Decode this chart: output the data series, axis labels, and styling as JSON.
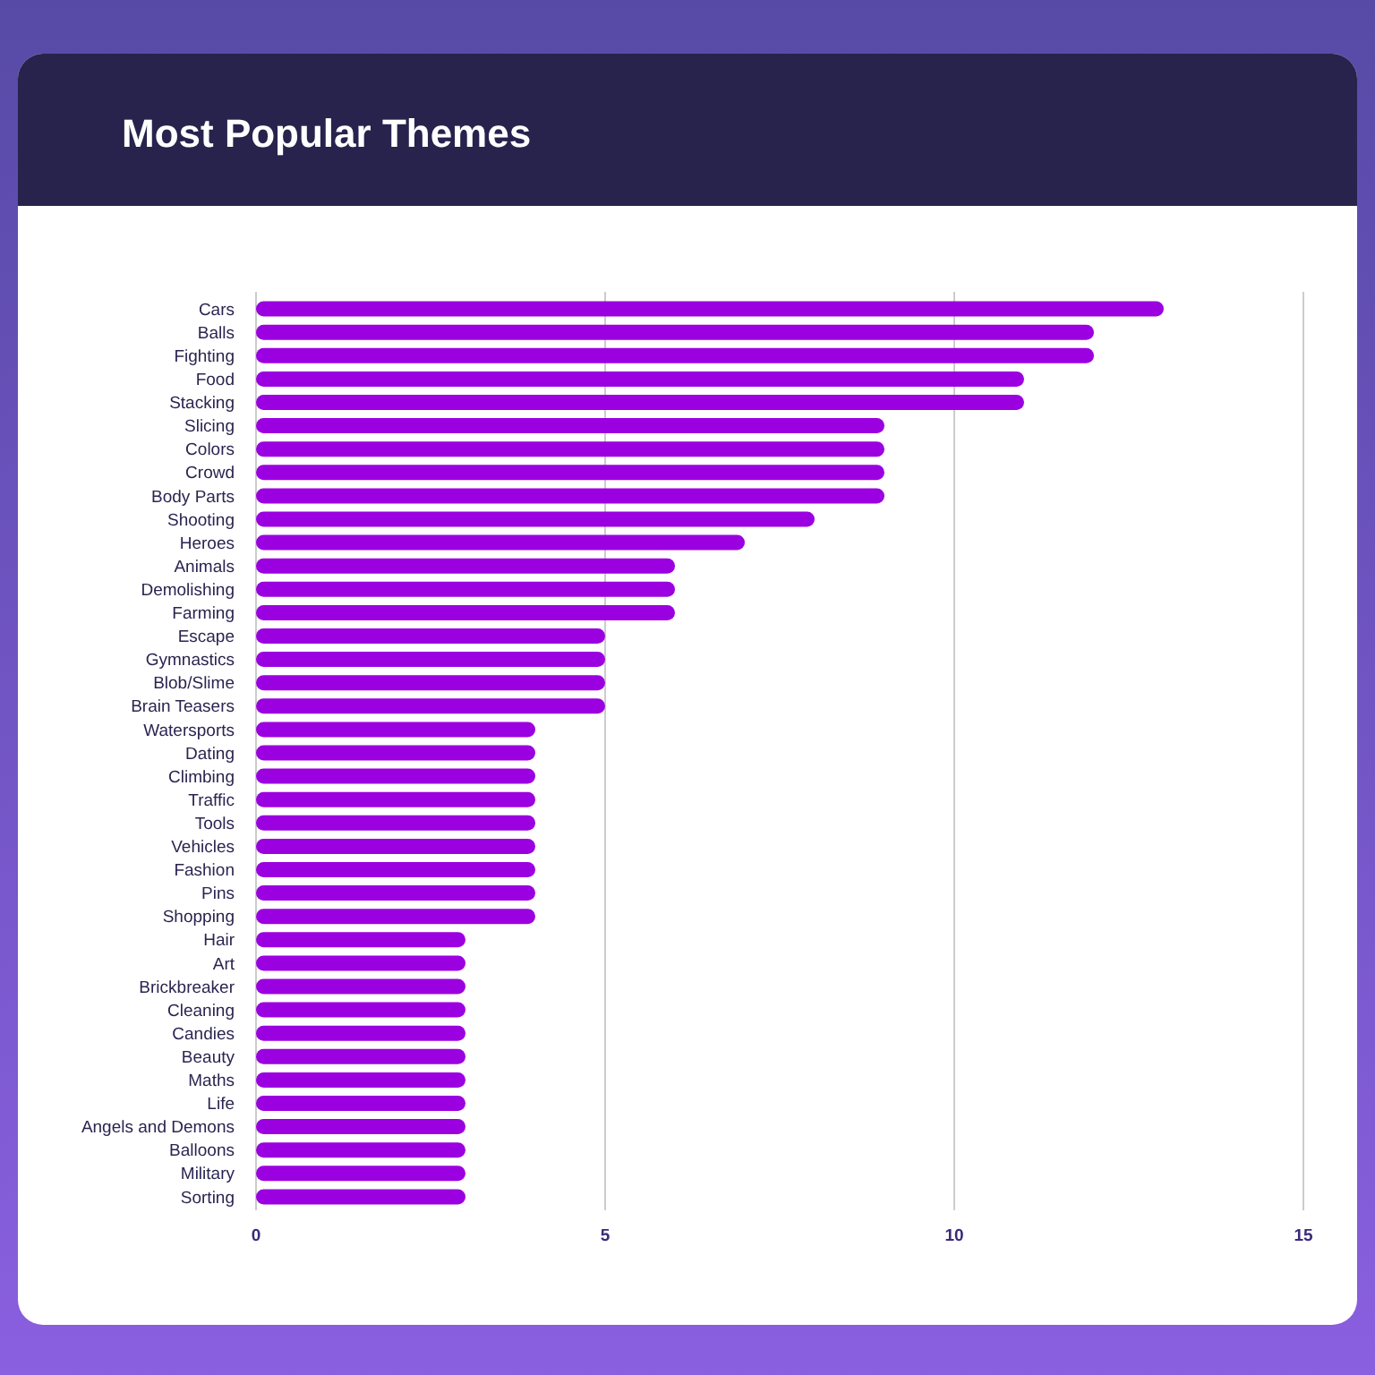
{
  "chart_data": {
    "type": "bar",
    "orientation": "horizontal",
    "title": "Most Popular Themes",
    "categories": [
      "Cars",
      "Balls",
      "Fighting",
      "Food",
      "Stacking",
      "Slicing",
      "Colors",
      "Crowd",
      "Body Parts",
      "Shooting",
      "Heroes",
      "Animals",
      "Demolishing",
      "Farming",
      "Escape",
      "Gymnastics",
      "Blob/Slime",
      "Brain Teasers",
      "Watersports",
      "Dating",
      "Climbing",
      "Traffic",
      "Tools",
      "Vehicles",
      "Fashion",
      "Pins",
      "Shopping",
      "Hair",
      "Art",
      "Brickbreaker",
      "Cleaning",
      "Candies",
      "Beauty",
      "Maths",
      "Life",
      "Angels and Demons",
      "Balloons",
      "Military",
      "Sorting"
    ],
    "values": [
      13,
      12,
      12,
      11,
      11,
      9,
      9,
      9,
      9,
      8,
      7,
      6,
      6,
      6,
      5,
      5,
      5,
      5,
      4,
      4,
      4,
      4,
      4,
      4,
      4,
      4,
      4,
      3,
      3,
      3,
      3,
      3,
      3,
      3,
      3,
      3,
      3,
      3,
      3
    ],
    "color": "#9b00e0",
    "xlim": [
      0,
      15
    ],
    "xticks": [
      0,
      5,
      10,
      15
    ],
    "grid": "x"
  }
}
